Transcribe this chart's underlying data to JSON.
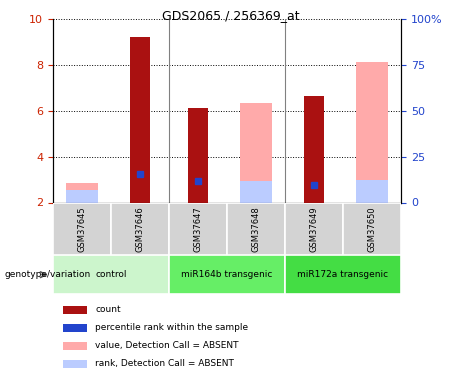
{
  "title": "GDS2065 / 256369_at",
  "samples": [
    "GSM37645",
    "GSM37646",
    "GSM37647",
    "GSM37648",
    "GSM37649",
    "GSM37650"
  ],
  "ylim_left": [
    2,
    10
  ],
  "ylim_right": [
    0,
    100
  ],
  "yticks_left": [
    2,
    4,
    6,
    8,
    10
  ],
  "yticks_right": [
    0,
    25,
    50,
    75,
    100
  ],
  "count_values": [
    null,
    9.2,
    6.1,
    null,
    6.65,
    null
  ],
  "rank_values": [
    null,
    3.25,
    2.95,
    null,
    2.75,
    null
  ],
  "absent_value_bars": [
    2.85,
    null,
    null,
    6.35,
    null,
    8.1
  ],
  "absent_rank_bars": [
    2.55,
    null,
    null,
    2.95,
    null,
    3.0
  ],
  "groups": [
    {
      "label": "control",
      "start": 0,
      "end": 2,
      "color": "#ccf5cc"
    },
    {
      "label": "miR164b transgenic",
      "start": 2,
      "end": 4,
      "color": "#66dd66"
    },
    {
      "label": "miR172a transgenic",
      "start": 4,
      "end": 6,
      "color": "#44cc44"
    }
  ],
  "color_count": "#aa1111",
  "color_rank": "#2244cc",
  "color_absent_value": "#ffaaaa",
  "color_absent_rank": "#bbccff",
  "left_tick_color": "#cc2200",
  "right_tick_color": "#2244cc"
}
